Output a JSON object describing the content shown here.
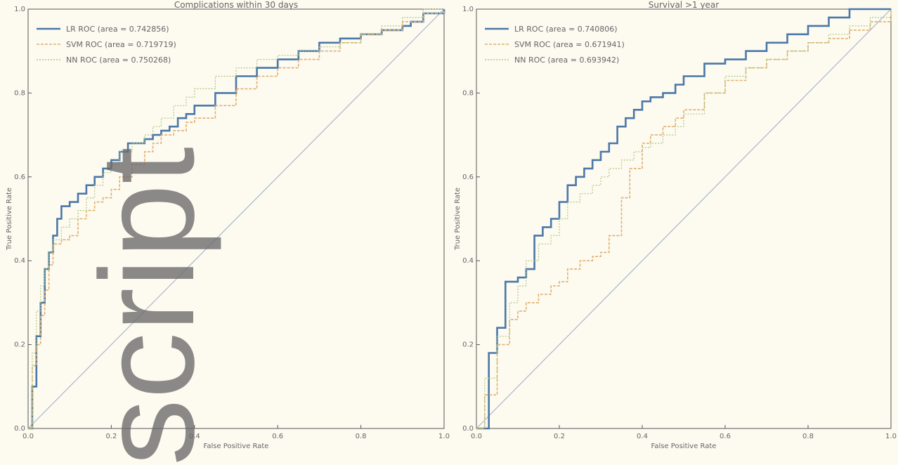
{
  "watermark_text": "script",
  "chart_data": [
    {
      "type": "line",
      "title": "Complications within 30 days",
      "xlabel": "False Positive Rate",
      "ylabel": "True Positive Rate",
      "xlim": [
        0,
        1
      ],
      "ylim": [
        0,
        1
      ],
      "xticks": [
        "0.0",
        "0.2",
        "0.4",
        "0.6",
        "0.8",
        "1.0"
      ],
      "yticks": [
        "0.0",
        "0.2",
        "0.4",
        "0.6",
        "0.8",
        "1.0"
      ],
      "grid": false,
      "legend_position": "upper-left",
      "diagonal": true,
      "series": [
        {
          "name": "LR ROC (area = 0.742856)",
          "color": "#4a78a8",
          "x": [
            0,
            0.01,
            0.02,
            0.03,
            0.04,
            0.05,
            0.06,
            0.07,
            0.08,
            0.1,
            0.12,
            0.14,
            0.16,
            0.18,
            0.2,
            0.22,
            0.24,
            0.26,
            0.28,
            0.3,
            0.32,
            0.34,
            0.36,
            0.38,
            0.4,
            0.45,
            0.5,
            0.55,
            0.6,
            0.65,
            0.7,
            0.75,
            0.8,
            0.85,
            0.9,
            0.92,
            0.95,
            1.0
          ],
          "y": [
            0,
            0.1,
            0.22,
            0.3,
            0.38,
            0.42,
            0.46,
            0.5,
            0.53,
            0.54,
            0.56,
            0.58,
            0.6,
            0.62,
            0.64,
            0.66,
            0.68,
            0.68,
            0.69,
            0.7,
            0.71,
            0.72,
            0.74,
            0.75,
            0.77,
            0.8,
            0.84,
            0.86,
            0.88,
            0.9,
            0.92,
            0.93,
            0.94,
            0.95,
            0.96,
            0.97,
            0.99,
            1.0
          ]
        },
        {
          "name": "SVM ROC (area = 0.719719)",
          "color": "#e0b070",
          "x": [
            0,
            0.01,
            0.02,
            0.03,
            0.04,
            0.05,
            0.06,
            0.08,
            0.1,
            0.12,
            0.14,
            0.16,
            0.18,
            0.2,
            0.22,
            0.25,
            0.28,
            0.3,
            0.32,
            0.35,
            0.38,
            0.4,
            0.45,
            0.5,
            0.55,
            0.6,
            0.65,
            0.7,
            0.75,
            0.8,
            0.85,
            0.9,
            0.95,
            1.0
          ],
          "y": [
            0,
            0.15,
            0.2,
            0.27,
            0.33,
            0.39,
            0.44,
            0.45,
            0.46,
            0.5,
            0.52,
            0.54,
            0.55,
            0.57,
            0.6,
            0.63,
            0.66,
            0.68,
            0.7,
            0.71,
            0.73,
            0.74,
            0.77,
            0.81,
            0.84,
            0.86,
            0.88,
            0.9,
            0.92,
            0.94,
            0.95,
            0.97,
            0.99,
            1.0
          ]
        },
        {
          "name": "NN ROC (area = 0.750268)",
          "color": "#b0c880",
          "x": [
            0,
            0.01,
            0.02,
            0.03,
            0.04,
            0.05,
            0.06,
            0.08,
            0.1,
            0.12,
            0.14,
            0.16,
            0.18,
            0.2,
            0.22,
            0.25,
            0.28,
            0.3,
            0.32,
            0.35,
            0.38,
            0.4,
            0.45,
            0.5,
            0.55,
            0.6,
            0.65,
            0.7,
            0.75,
            0.8,
            0.85,
            0.9,
            0.95,
            1.0
          ],
          "y": [
            0,
            0.18,
            0.28,
            0.34,
            0.38,
            0.42,
            0.45,
            0.48,
            0.5,
            0.52,
            0.55,
            0.58,
            0.61,
            0.63,
            0.66,
            0.68,
            0.7,
            0.72,
            0.74,
            0.77,
            0.79,
            0.81,
            0.84,
            0.86,
            0.88,
            0.89,
            0.9,
            0.91,
            0.92,
            0.94,
            0.96,
            0.98,
            1.0,
            1.0
          ]
        }
      ]
    },
    {
      "type": "line",
      "title": "Survival >1 year",
      "xlabel": "False Positive Rate",
      "ylabel": "True Positive Rate",
      "xlim": [
        0,
        1
      ],
      "ylim": [
        0,
        1
      ],
      "xticks": [
        "0.0",
        "0.2",
        "0.4",
        "0.6",
        "0.8",
        "1.0"
      ],
      "yticks": [
        "0.0",
        "0.2",
        "0.4",
        "0.6",
        "0.8",
        "1.0"
      ],
      "grid": false,
      "legend_position": "upper-left",
      "diagonal": true,
      "series": [
        {
          "name": "LR ROC (area = 0.740806)",
          "color": "#4a78a8",
          "x": [
            0,
            0.03,
            0.05,
            0.07,
            0.1,
            0.12,
            0.14,
            0.16,
            0.18,
            0.2,
            0.22,
            0.24,
            0.26,
            0.28,
            0.3,
            0.32,
            0.34,
            0.36,
            0.38,
            0.4,
            0.42,
            0.45,
            0.48,
            0.5,
            0.55,
            0.6,
            0.65,
            0.7,
            0.75,
            0.8,
            0.85,
            0.9,
            1.0
          ],
          "y": [
            0,
            0.18,
            0.24,
            0.35,
            0.36,
            0.38,
            0.46,
            0.48,
            0.5,
            0.54,
            0.58,
            0.6,
            0.62,
            0.64,
            0.66,
            0.68,
            0.72,
            0.74,
            0.76,
            0.78,
            0.79,
            0.8,
            0.82,
            0.84,
            0.87,
            0.88,
            0.9,
            0.92,
            0.94,
            0.96,
            0.98,
            1.0,
            1.0
          ]
        },
        {
          "name": "SVM ROC (area = 0.671941)",
          "color": "#e0b070",
          "x": [
            0,
            0.02,
            0.05,
            0.08,
            0.1,
            0.12,
            0.15,
            0.18,
            0.2,
            0.22,
            0.25,
            0.28,
            0.3,
            0.32,
            0.35,
            0.37,
            0.4,
            0.42,
            0.45,
            0.48,
            0.5,
            0.55,
            0.6,
            0.65,
            0.7,
            0.75,
            0.8,
            0.85,
            0.9,
            0.95,
            1.0
          ],
          "y": [
            0,
            0.08,
            0.2,
            0.26,
            0.28,
            0.3,
            0.32,
            0.34,
            0.35,
            0.38,
            0.4,
            0.41,
            0.42,
            0.46,
            0.55,
            0.62,
            0.68,
            0.7,
            0.72,
            0.74,
            0.76,
            0.8,
            0.83,
            0.86,
            0.88,
            0.9,
            0.92,
            0.93,
            0.95,
            0.97,
            1.0
          ]
        },
        {
          "name": "NN ROC (area = 0.693942)",
          "color": "#b0c880",
          "x": [
            0,
            0.02,
            0.05,
            0.08,
            0.1,
            0.12,
            0.15,
            0.18,
            0.2,
            0.22,
            0.25,
            0.28,
            0.3,
            0.32,
            0.35,
            0.38,
            0.4,
            0.42,
            0.45,
            0.48,
            0.5,
            0.55,
            0.6,
            0.65,
            0.7,
            0.75,
            0.8,
            0.85,
            0.9,
            0.95,
            1.0
          ],
          "y": [
            0,
            0.12,
            0.22,
            0.3,
            0.34,
            0.4,
            0.44,
            0.46,
            0.5,
            0.54,
            0.56,
            0.58,
            0.6,
            0.62,
            0.64,
            0.66,
            0.67,
            0.68,
            0.7,
            0.72,
            0.75,
            0.8,
            0.84,
            0.86,
            0.88,
            0.9,
            0.92,
            0.94,
            0.96,
            0.98,
            1.0
          ]
        }
      ]
    }
  ]
}
